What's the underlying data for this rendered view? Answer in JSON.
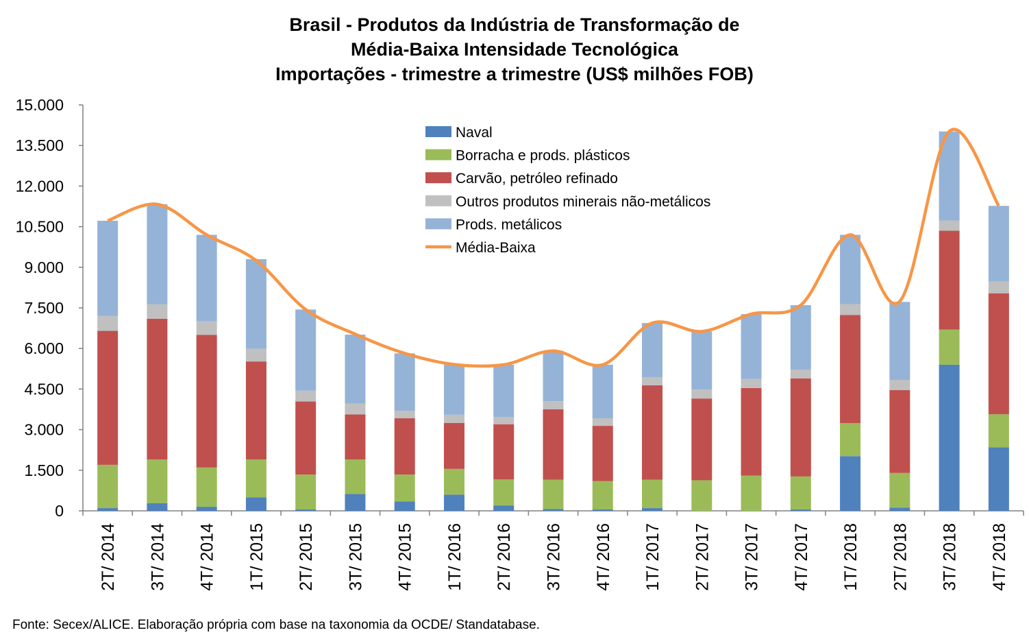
{
  "chart_data": {
    "type": "bar",
    "stacked": true,
    "title_lines": [
      "Brasil - Produtos da Indústria de Transformação de",
      "Média-Baixa Intensidade Tecnológica",
      "Importações - trimestre a trimestre (US$ milhões FOB)"
    ],
    "categories": [
      "2T/ 2014",
      "3T/ 2014",
      "4T/ 2014",
      "1T/ 2015",
      "2T/ 2015",
      "3T/ 2015",
      "4T/ 2015",
      "1T/ 2016",
      "2T/ 2016",
      "3T/ 2016",
      "4T/ 2016",
      "1T/ 2017",
      "2T/ 2017",
      "3T/ 2017",
      "4T/ 2017",
      "1T/ 2018",
      "2T/ 2018",
      "3T/ 2018",
      "4T/ 2018"
    ],
    "ylim": [
      0,
      15000
    ],
    "yticks": [
      0,
      1500,
      3000,
      4500,
      6000,
      7500,
      9000,
      10500,
      12000,
      13500,
      15000
    ],
    "ytick_labels": [
      "0",
      "1.500",
      "3.000",
      "4.500",
      "6.000",
      "7.500",
      "9.000",
      "10.500",
      "12.000",
      "13.500",
      "15.000"
    ],
    "series": [
      {
        "name": "Naval",
        "color": "#4f81bd",
        "values": [
          100,
          280,
          150,
          500,
          50,
          620,
          350,
          600,
          200,
          70,
          50,
          100,
          0,
          0,
          50,
          2020,
          120,
          5400,
          2350
        ]
      },
      {
        "name": "Borracha e prods. plásticos",
        "color": "#9bbb59",
        "values": [
          1600,
          1620,
          1450,
          1400,
          1290,
          1280,
          990,
          950,
          960,
          1080,
          1050,
          1050,
          1130,
          1300,
          1220,
          1220,
          1280,
          1300,
          1220
        ]
      },
      {
        "name": "Carvão, petróleo refinado",
        "color": "#c0504d",
        "values": [
          4950,
          5200,
          4900,
          3620,
          2700,
          1660,
          2080,
          1700,
          2040,
          2600,
          2040,
          3490,
          3020,
          3240,
          3620,
          4000,
          3060,
          3650,
          4470
        ]
      },
      {
        "name": "Outros produtos minerais não-metálicos",
        "color": "#c0c0c0",
        "values": [
          550,
          530,
          500,
          470,
          400,
          400,
          280,
          300,
          270,
          300,
          280,
          300,
          330,
          330,
          330,
          400,
          380,
          380,
          430
        ]
      },
      {
        "name": "Prods. metálicos",
        "color": "#95b3d7",
        "values": [
          3520,
          3700,
          3200,
          3310,
          3000,
          2550,
          2120,
          1860,
          1930,
          1860,
          1980,
          2000,
          2150,
          2400,
          2380,
          2560,
          2880,
          3290,
          2800
        ]
      }
    ],
    "line_series": {
      "name": "Média-Baixa",
      "color": "#f79646",
      "values": [
        10720,
        11330,
        10200,
        9250,
        7440,
        6530,
        5820,
        5410,
        5400,
        5910,
        5400,
        6940,
        6630,
        7270,
        7600,
        10200,
        7740,
        14020,
        11270
      ]
    },
    "grid": false,
    "legend_position": "top-center",
    "source": "Fonte: Secex/ALICE. Elaboração própria com base na taxonomia da OCDE/ Standatabase."
  }
}
